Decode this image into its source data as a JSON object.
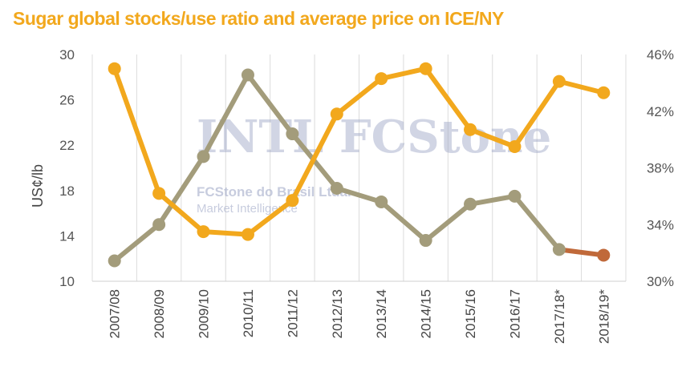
{
  "title": "Sugar global stocks/use ratio and average price on ICE/NY",
  "watermark": {
    "logo": "INTL FCStone",
    "line1": "FCStone do Brasil Ltda.",
    "line2": "Market Intelligence"
  },
  "chart_data": {
    "type": "line",
    "title": "Sugar global stocks/use ratio and average price on ICE/NY",
    "ylabel": "US¢/lb",
    "y2label": "",
    "ylim": [
      10,
      30
    ],
    "yticks": [
      "30",
      "26",
      "22",
      "18",
      "14",
      "10"
    ],
    "y2lim": [
      30,
      46
    ],
    "y2ticks": [
      "46%",
      "42%",
      "38%",
      "34%",
      "30%"
    ],
    "categories": [
      "2007/08",
      "2008/09",
      "2009/10",
      "2010/11",
      "2011/12",
      "2012/13",
      "2013/14",
      "2014/15",
      "2015/16",
      "2016/17",
      "2017/18*",
      "2018/19*"
    ],
    "grid": "vertical",
    "legend": "none",
    "series": [
      {
        "axis": "left",
        "color": "#A39C7B",
        "forecast_color": "#C0693A",
        "values": [
          11.8,
          15.0,
          21.0,
          28.2,
          23.0,
          18.2,
          17.0,
          13.6,
          16.8,
          17.5,
          12.8,
          12.3
        ]
      },
      {
        "axis": "right",
        "color": "#F2A81D",
        "values": [
          45.0,
          36.2,
          33.5,
          33.3,
          35.7,
          41.8,
          44.3,
          45.0,
          40.7,
          39.5,
          44.1,
          43.3
        ]
      }
    ]
  }
}
